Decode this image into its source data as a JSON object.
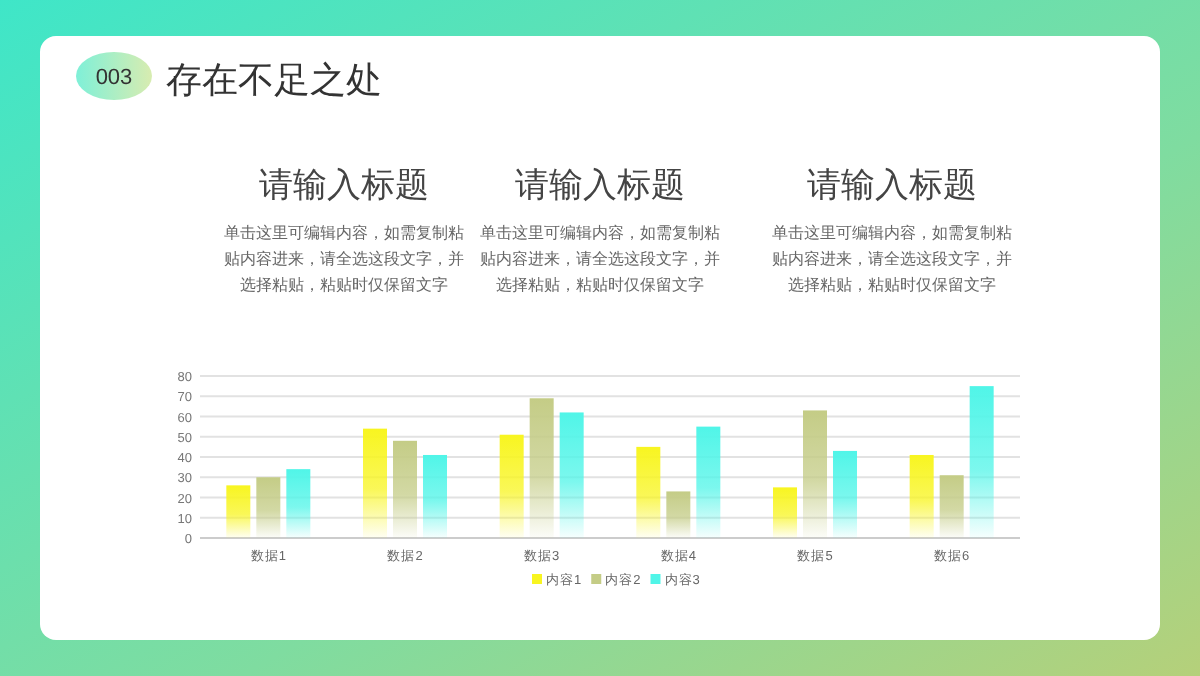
{
  "chart_data": {
    "type": "bar",
    "title": "存在不足之处",
    "annotations": [
      "003",
      "请输入标题",
      "单击这里可编辑内容，如需复制粘贴内容进来，请全选这段文字，并选择粘贴，粘贴时仅保留文字",
      "请输入标题",
      "单击这里可编辑内容，如需复制粘贴内容进来，请全选这段文字，并选择粘贴，粘贴时仅保留文字",
      "请输入标题",
      "单击这里可编辑内容，如需复制粘贴内容进来，请全选这段文字，并选择粘贴，粘贴时仅保留文字"
    ],
    "categories": [
      "数据1",
      "数据2",
      "数据3",
      "数据4",
      "数据5",
      "数据6"
    ],
    "series": [
      {
        "name": "内容1",
        "color": "#f8f520",
        "values": [
          26,
          54,
          51,
          45,
          25,
          41
        ]
      },
      {
        "name": "内容2",
        "color": "#c4cc86",
        "values": [
          30,
          48,
          69,
          23,
          63,
          31
        ]
      },
      {
        "name": "内容3",
        "color": "#50f5e8",
        "values": [
          34,
          41,
          62,
          55,
          43,
          75
        ]
      }
    ],
    "ylim": [
      0,
      80
    ],
    "yticks": [
      0,
      10,
      20,
      30,
      40,
      50,
      60,
      70,
      80
    ],
    "grid": "y",
    "legend": "bottom"
  }
}
